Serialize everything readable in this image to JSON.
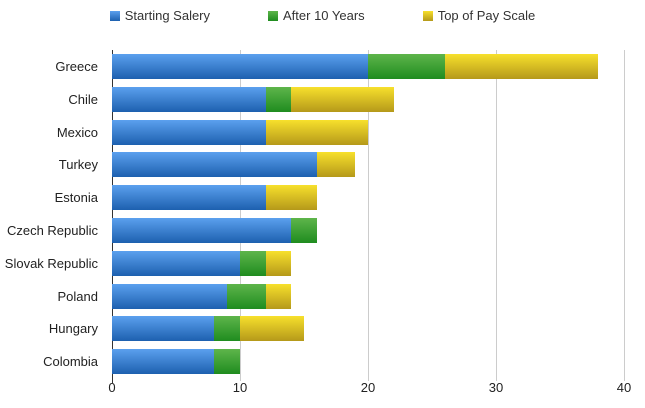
{
  "chart_data": {
    "type": "bar",
    "orientation": "horizontal",
    "stacked": true,
    "title": "",
    "xlabel": "",
    "ylabel": "",
    "xlim": [
      0,
      40
    ],
    "x_ticks": [
      0,
      10,
      20,
      30,
      40
    ],
    "grid": true,
    "legend_position": "top",
    "categories": [
      "Greece",
      "Chile",
      "Mexico",
      "Turkey",
      "Estonia",
      "Czech Republic",
      "Slovak Republic",
      "Poland",
      "Hungary",
      "Colombia"
    ],
    "series": [
      {
        "name": "Starting Salery",
        "color": "#3d85c6",
        "gradient": [
          "#5ba0ee",
          "#1d60af"
        ],
        "values": [
          20,
          12,
          12,
          16,
          12,
          14,
          10,
          9,
          8,
          8
        ]
      },
      {
        "name": "After 10 Years",
        "color": "#2f9e2f",
        "gradient": [
          "#5eb54b",
          "#1f8c1f"
        ],
        "values": [
          6,
          2,
          0,
          0,
          0,
          2,
          2,
          3,
          2,
          2
        ]
      },
      {
        "name": "Top of Pay Scale",
        "color": "#e0c225",
        "gradient": [
          "#f7e02c",
          "#b5991a"
        ],
        "values": [
          12,
          8,
          8,
          3,
          4,
          0,
          2,
          2,
          5,
          0
        ]
      }
    ]
  },
  "legend": {
    "items": [
      {
        "label": "Starting Salery",
        "icon": "blue-square-swatch"
      },
      {
        "label": "After 10 Years",
        "icon": "green-square-swatch"
      },
      {
        "label": "Top of Pay Scale",
        "icon": "yellow-square-swatch"
      }
    ]
  },
  "axis": {
    "tick_labels": [
      "0",
      "10",
      "20",
      "30",
      "40"
    ]
  },
  "colors": {
    "background": "#ffffff",
    "gridline": "#cccccc",
    "axis_line": "#333333",
    "label_text": "#222222",
    "legend_text": "#333333"
  }
}
